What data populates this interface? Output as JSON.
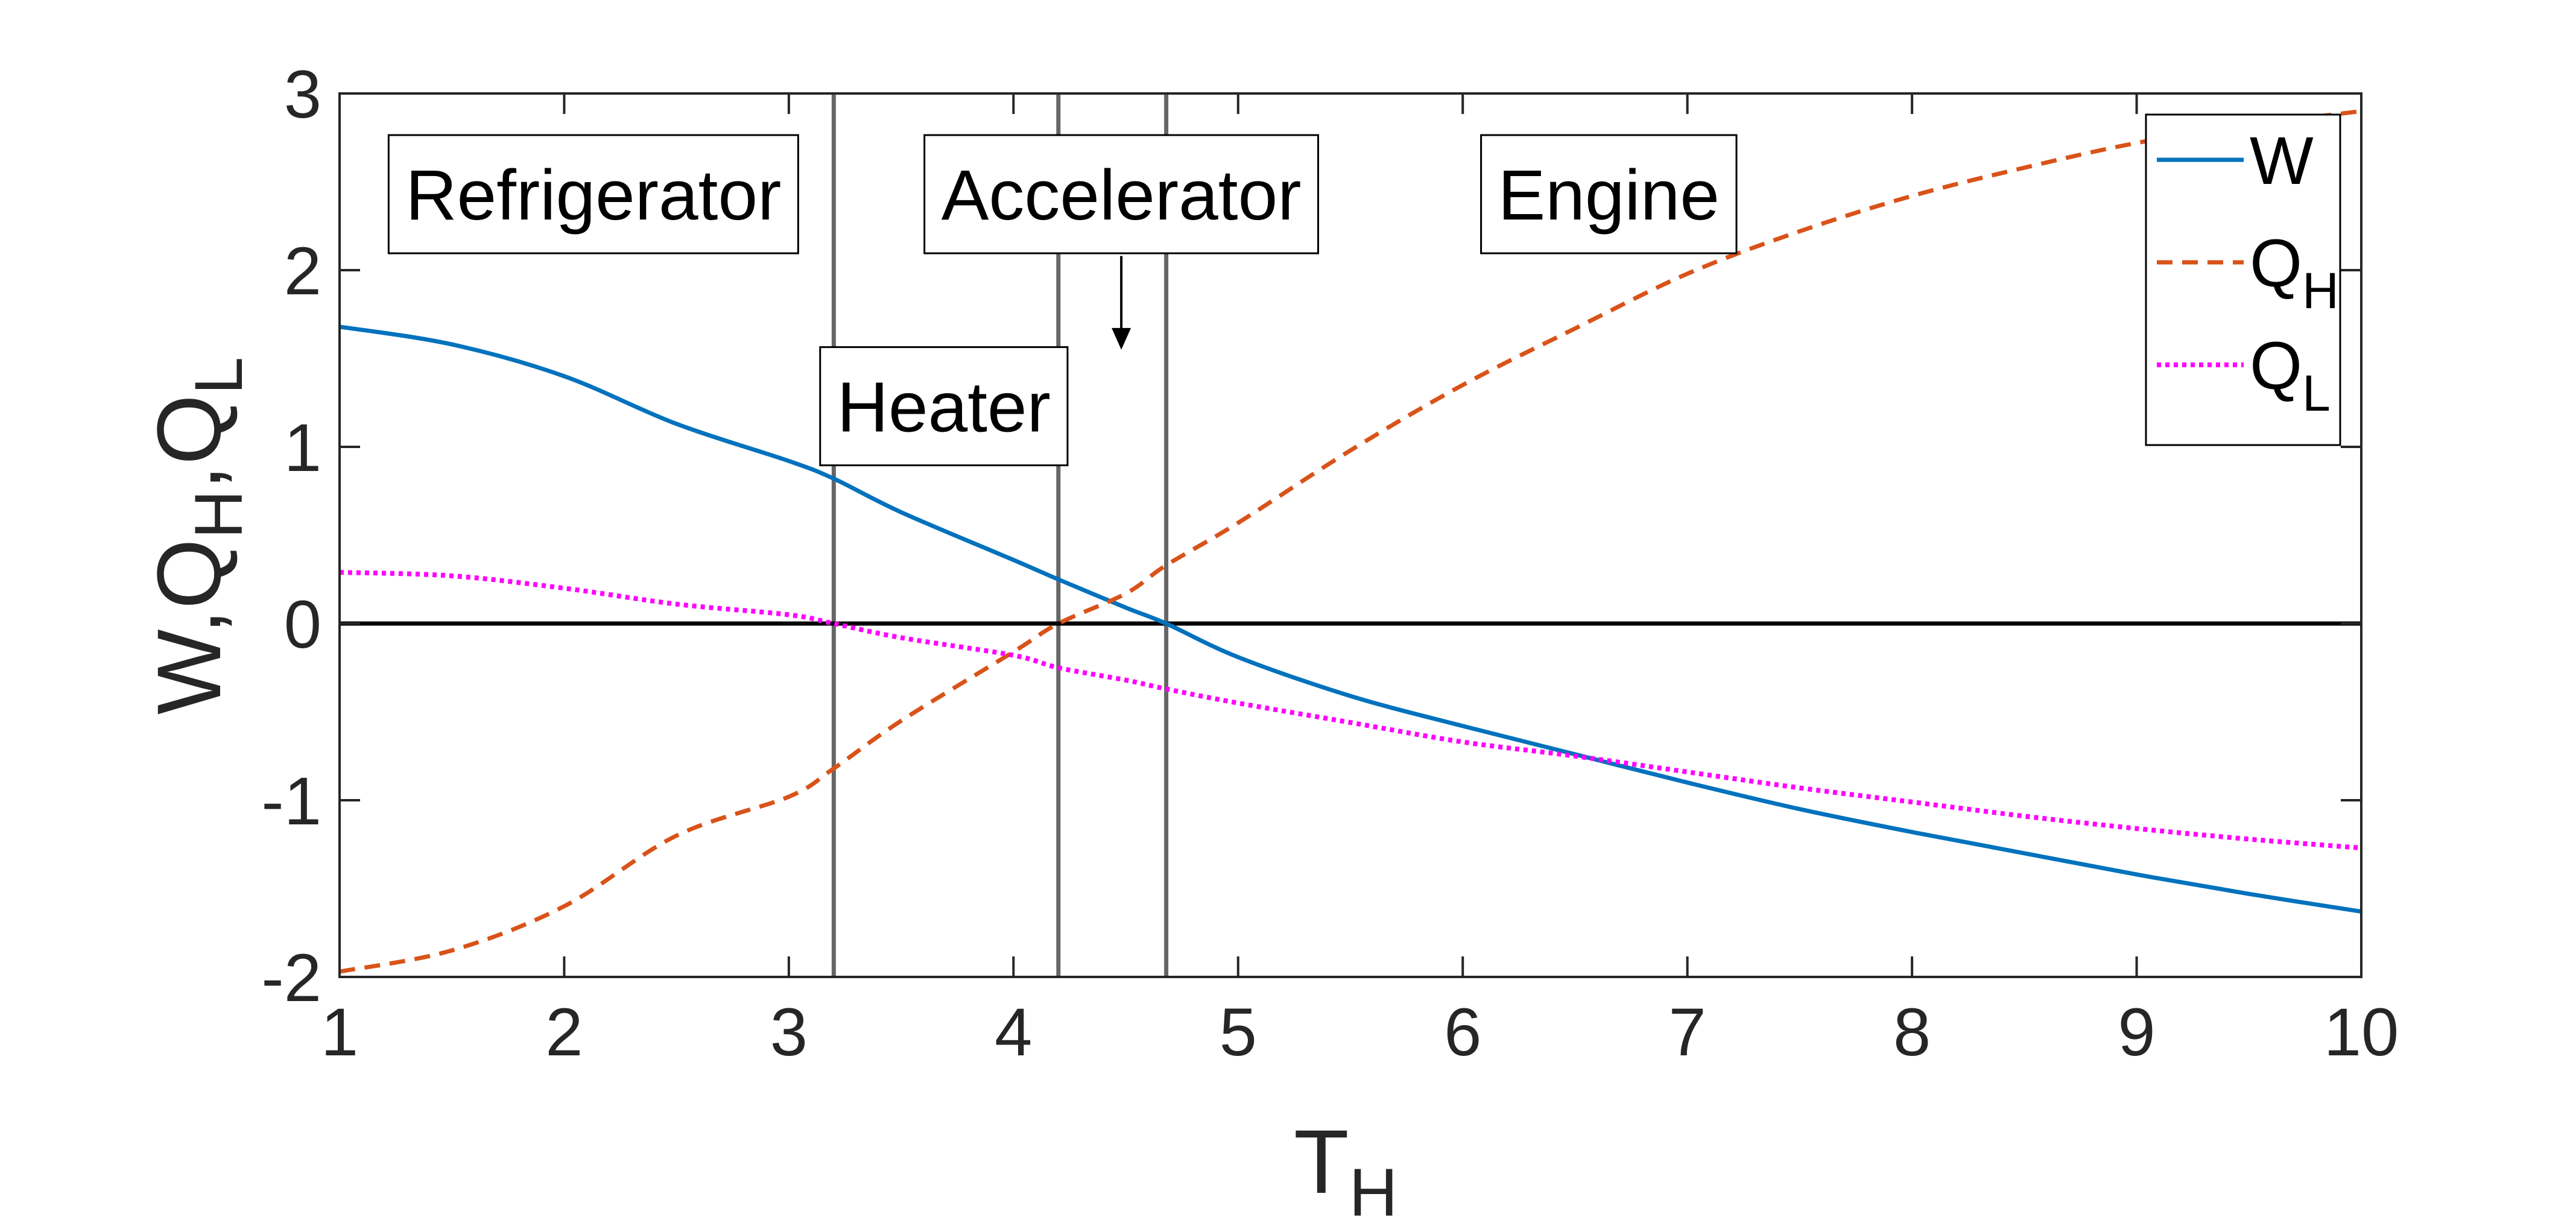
{
  "chart_data": {
    "type": "line",
    "xlabel": "T",
    "xlabel_sub": "H",
    "ylabel_parts": [
      "W,Q",
      "H",
      ",Q",
      "L"
    ],
    "xlim": [
      1,
      10
    ],
    "ylim": [
      -2,
      3
    ],
    "x_ticks": [
      "1",
      "2",
      "3",
      "4",
      "5",
      "6",
      "7",
      "8",
      "9",
      "10"
    ],
    "y_ticks": [
      "-2",
      "-1",
      "0",
      "1",
      "2",
      "3"
    ],
    "grid": false,
    "legend_position": "top-right",
    "legend": [
      {
        "name": "W",
        "sub": "",
        "color": "#0072BD",
        "style": "solid"
      },
      {
        "name": "Q",
        "sub": "H",
        "color": "#D95319",
        "style": "dashed"
      },
      {
        "name": "Q",
        "sub": "L",
        "color": "#FF00FF",
        "style": "dotted"
      }
    ],
    "series": [
      {
        "name": "W",
        "color": "#0072BD",
        "style": "solid",
        "x": [
          1,
          1.5,
          2,
          2.5,
          3,
          3.2,
          3.5,
          4,
          4.2,
          4.5,
          4.68,
          5,
          5.5,
          6,
          6.5,
          7,
          7.5,
          8,
          8.5,
          9,
          9.5,
          10
        ],
        "y": [
          1.68,
          1.58,
          1.4,
          1.13,
          0.92,
          0.82,
          0.63,
          0.36,
          0.25,
          0.09,
          0.0,
          -0.19,
          -0.41,
          -0.58,
          -0.74,
          -0.9,
          -1.05,
          -1.18,
          -1.3,
          -1.42,
          -1.53,
          -1.63
        ]
      },
      {
        "name": "QH",
        "color": "#D95319",
        "style": "dashed",
        "x": [
          1,
          1.5,
          2,
          2.5,
          3,
          3.2,
          3.5,
          4,
          4.2,
          4.5,
          4.68,
          5,
          5.5,
          6,
          6.5,
          7,
          7.5,
          8,
          8.5,
          9,
          9.5,
          10
        ],
        "y": [
          -1.97,
          -1.85,
          -1.6,
          -1.2,
          -0.98,
          -0.82,
          -0.55,
          -0.16,
          0.0,
          0.17,
          0.33,
          0.57,
          0.98,
          1.35,
          1.67,
          1.98,
          2.22,
          2.42,
          2.58,
          2.72,
          2.82,
          2.9
        ]
      },
      {
        "name": "QL",
        "color": "#FF00FF",
        "style": "dotted",
        "x": [
          1,
          1.5,
          2,
          2.5,
          3,
          3.2,
          3.5,
          4,
          4.2,
          4.5,
          4.68,
          5,
          5.5,
          6,
          6.5,
          7,
          7.5,
          8,
          8.5,
          9,
          9.5,
          10
        ],
        "y": [
          0.29,
          0.27,
          0.2,
          0.11,
          0.05,
          0.0,
          -0.08,
          -0.18,
          -0.25,
          -0.32,
          -0.37,
          -0.45,
          -0.56,
          -0.67,
          -0.75,
          -0.84,
          -0.93,
          -1.01,
          -1.09,
          -1.16,
          -1.22,
          -1.27
        ]
      }
    ],
    "vertical_lines": [
      3.2,
      4.2,
      4.68
    ],
    "reference_line_y": 0,
    "annotations": [
      {
        "text": "Refrigerator",
        "x": 2.13,
        "y": 2.43
      },
      {
        "text": "Accelerator",
        "x": 4.48,
        "y": 2.43
      },
      {
        "text": "Engine",
        "x": 6.65,
        "y": 2.43
      },
      {
        "text": "Heater",
        "x": 3.69,
        "y": 1.23
      }
    ],
    "arrow": {
      "x": 4.48,
      "y_from": 2.08,
      "y_to": 1.55
    }
  }
}
